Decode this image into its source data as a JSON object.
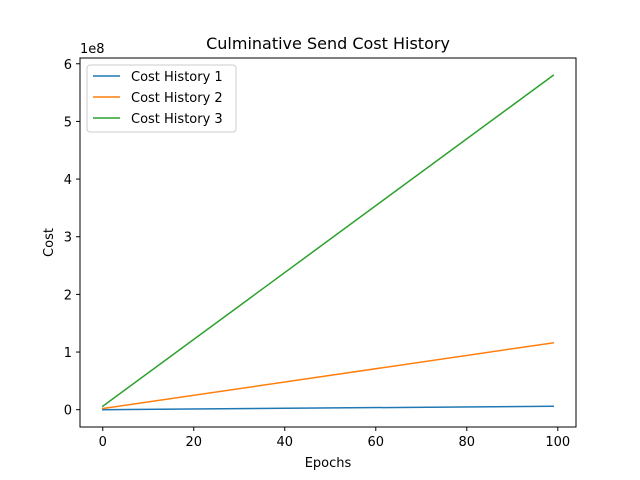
{
  "chart_data": {
    "type": "line",
    "title": "Culminative Send Cost History",
    "xlabel": "Epochs",
    "ylabel": "Cost",
    "y_scale_label": "1e8",
    "xlim": [
      -5,
      104
    ],
    "ylim": [
      -0.3,
      6.1
    ],
    "x_ticks": [
      0,
      20,
      40,
      60,
      80,
      100
    ],
    "x_tick_labels": [
      "0",
      "20",
      "40",
      "60",
      "80",
      "100"
    ],
    "y_ticks": [
      0,
      1,
      2,
      3,
      4,
      5,
      6
    ],
    "y_tick_labels": [
      "0",
      "1",
      "2",
      "3",
      "4",
      "5",
      "6"
    ],
    "grid": false,
    "legend_position": "top-left",
    "x": [
      0,
      99
    ],
    "series": [
      {
        "name": "Cost History 1",
        "color": "#1f77b4",
        "values": [
          0.0,
          0.06
        ]
      },
      {
        "name": "Cost History 2",
        "color": "#ff7f0e",
        "values": [
          0.02,
          1.16
        ]
      },
      {
        "name": "Cost History 3",
        "color": "#2ca02c",
        "values": [
          0.06,
          5.8
        ]
      }
    ]
  }
}
